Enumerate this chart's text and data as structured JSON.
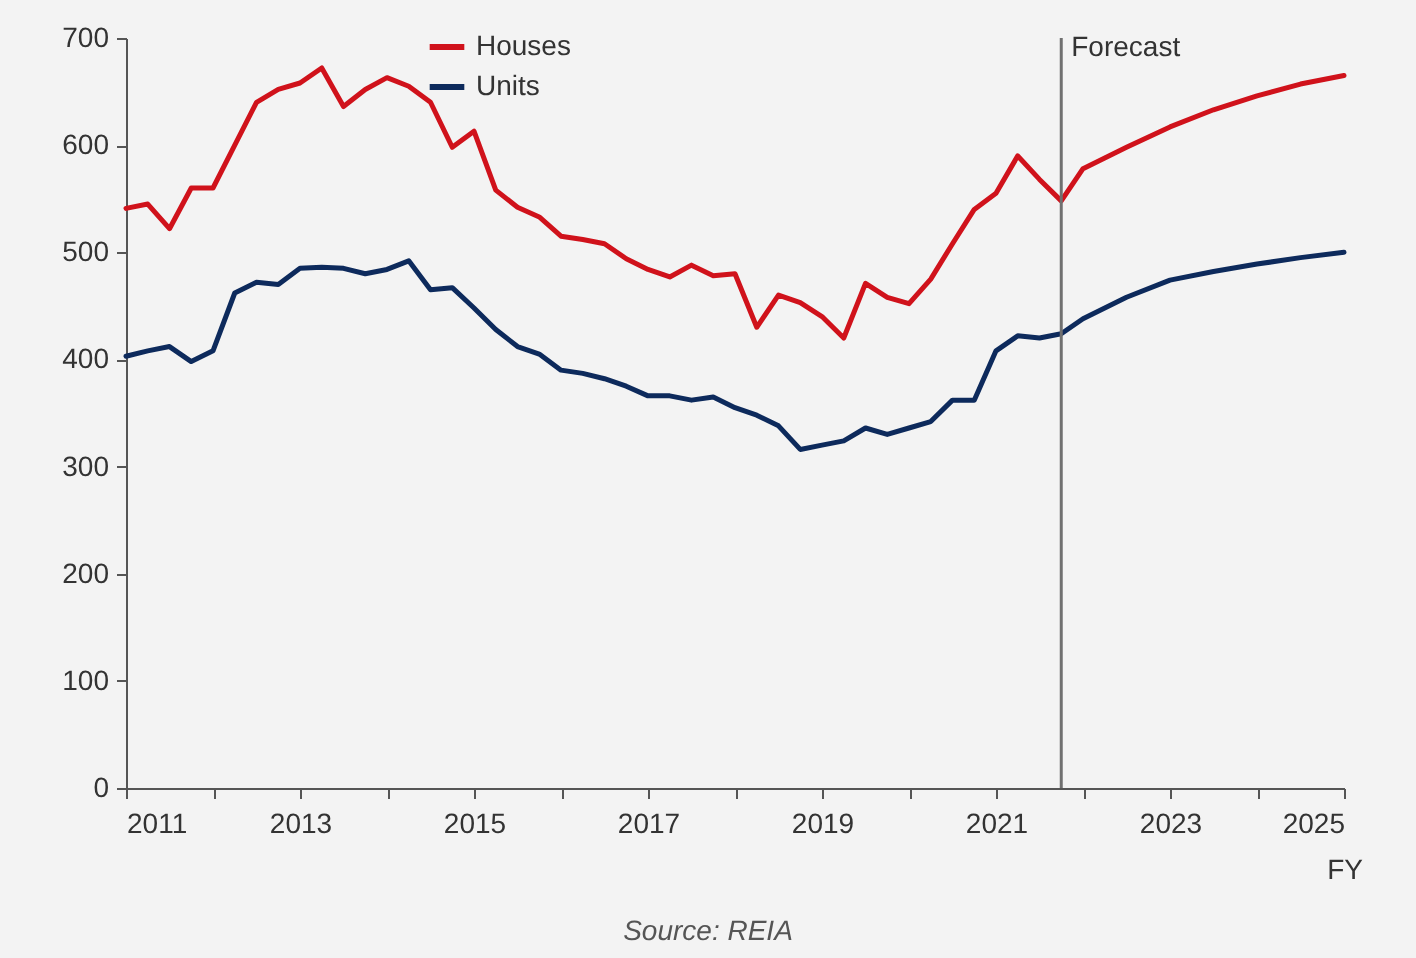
{
  "chart_data": {
    "type": "line",
    "xlabel": "FY",
    "annotations": [
      "Source: REIA"
    ],
    "x": [
      2011,
      2011.25,
      2011.5,
      2011.75,
      2012,
      2012.25,
      2012.5,
      2012.75,
      2013,
      2013.25,
      2013.5,
      2013.75,
      2014,
      2014.25,
      2014.5,
      2014.75,
      2015,
      2015.25,
      2015.5,
      2015.75,
      2016,
      2016.25,
      2016.5,
      2016.75,
      2017,
      2017.25,
      2017.5,
      2017.75,
      2018,
      2018.25,
      2018.5,
      2018.75,
      2019,
      2019.25,
      2019.5,
      2019.75,
      2020,
      2020.25,
      2020.5,
      2020.75,
      2021,
      2021.25,
      2021.5,
      2021.75,
      2022,
      2022.5,
      2023,
      2023.5,
      2024,
      2024.5,
      2025
    ],
    "series": [
      {
        "name": "Houses",
        "color": "#d0121b",
        "values": [
          541,
          545,
          522,
          560,
          560,
          600,
          640,
          652,
          658,
          672,
          636,
          652,
          663,
          655,
          640,
          598,
          613,
          558,
          542,
          533,
          515,
          512,
          508,
          494,
          484,
          477,
          488,
          478,
          480,
          430,
          460,
          453,
          440,
          420,
          471,
          458,
          452,
          475,
          508,
          540,
          555,
          590,
          568,
          548,
          578,
          598,
          617,
          633,
          646,
          657,
          665
        ]
      },
      {
        "name": "Units",
        "color": "#0d2a5c",
        "values": [
          403,
          408,
          412,
          398,
          408,
          462,
          472,
          470,
          485,
          486,
          485,
          480,
          484,
          492,
          465,
          467,
          448,
          428,
          412,
          405,
          390,
          387,
          382,
          375,
          366,
          366,
          362,
          365,
          355,
          348,
          338,
          316,
          320,
          324,
          336,
          330,
          336,
          342,
          362,
          362,
          408,
          422,
          420,
          424,
          438,
          458,
          474,
          482,
          489,
          495,
          500
        ]
      }
    ],
    "xlim": [
      2011,
      2025
    ],
    "xticks": [
      2011,
      {
        "value": 2012,
        "label": null
      },
      2013,
      {
        "value": 2014,
        "label": null
      },
      2015,
      {
        "value": 2016,
        "label": null
      },
      2017,
      {
        "value": 2018,
        "label": null
      },
      2019,
      {
        "value": 2020,
        "label": null
      },
      2021,
      {
        "value": 2022,
        "label": null
      },
      2023,
      {
        "value": 2024,
        "label": null
      },
      2025
    ],
    "ylim": [
      0,
      700
    ],
    "yticks": [
      0,
      100,
      200,
      300,
      400,
      500,
      600,
      700
    ],
    "ref_lines": [
      {
        "axis": "x",
        "value": 2021.75,
        "label": "Forecast",
        "color": "#707070"
      }
    ],
    "grid": false,
    "legend": "top left",
    "marker": "none",
    "line_style": "solid"
  }
}
